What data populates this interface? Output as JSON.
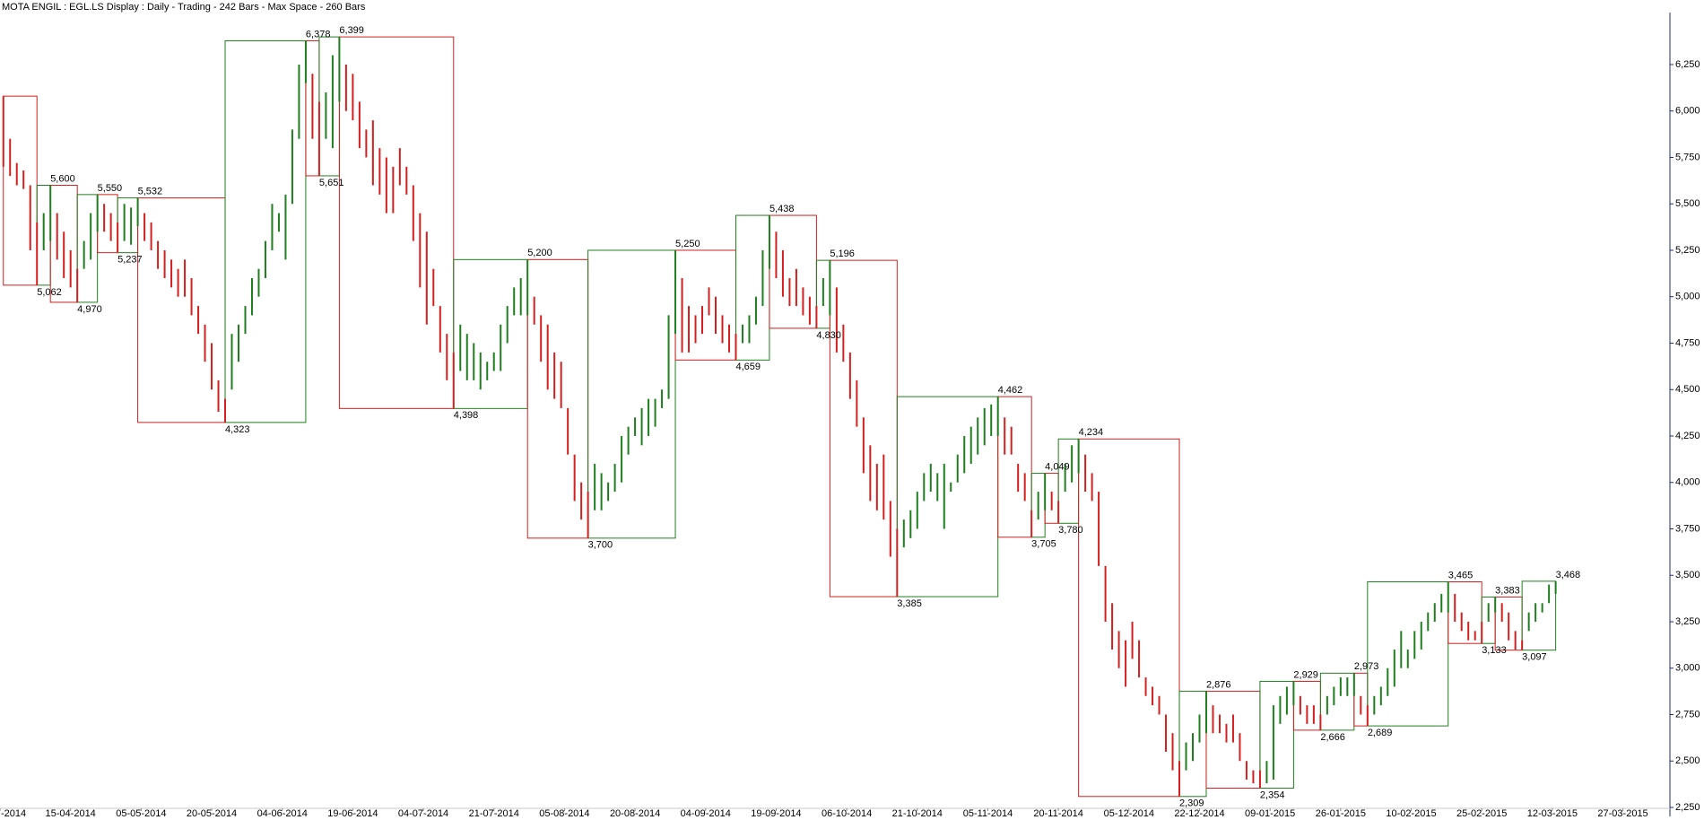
{
  "chart_data": {
    "type": "ohlc",
    "title": "MOTA ENGIL : EGL.LS Display :  Daily  - Trading - 242 Bars -  Max Space - 260 Bars",
    "xlim": [
      -0.5,
      248
    ],
    "ylim": [
      2250,
      6501
    ],
    "yticks": [
      {
        "value": 2250,
        "label": "2,250"
      },
      {
        "value": 2500,
        "label": "2,500"
      },
      {
        "value": 2750,
        "label": "2,750"
      },
      {
        "value": 3000,
        "label": "3,000"
      },
      {
        "value": 3250,
        "label": "3,250"
      },
      {
        "value": 3500,
        "label": "3,500"
      },
      {
        "value": 3750,
        "label": "3,750"
      },
      {
        "value": 4000,
        "label": "4,000"
      },
      {
        "value": 4250,
        "label": "4,250"
      },
      {
        "value": 4500,
        "label": "4,500"
      },
      {
        "value": 4750,
        "label": "4,750"
      },
      {
        "value": 5000,
        "label": "5,000"
      },
      {
        "value": 5250,
        "label": "5,250"
      },
      {
        "value": 5500,
        "label": "5,500"
      },
      {
        "value": 5750,
        "label": "5,750"
      },
      {
        "value": 6000,
        "label": "6,000"
      },
      {
        "value": 6250,
        "label": "6,250"
      }
    ],
    "xticks": [
      {
        "value": -0.5,
        "label": "-2014"
      },
      {
        "value": 10,
        "label": "15-04-2014"
      },
      {
        "value": 20.5,
        "label": "05-05-2014"
      },
      {
        "value": 31,
        "label": "20-05-2014"
      },
      {
        "value": 41.5,
        "label": "04-06-2014"
      },
      {
        "value": 52,
        "label": "19-06-2014"
      },
      {
        "value": 62.5,
        "label": "04-07-2014"
      },
      {
        "value": 73,
        "label": "21-07-2014"
      },
      {
        "value": 83.5,
        "label": "05-08-2014"
      },
      {
        "value": 94,
        "label": "20-08-2014"
      },
      {
        "value": 104.5,
        "label": "04-09-2014"
      },
      {
        "value": 115,
        "label": "19-09-2014"
      },
      {
        "value": 125.5,
        "label": "06-10-2014"
      },
      {
        "value": 136,
        "label": "21-10-2014"
      },
      {
        "value": 146.5,
        "label": "05-11-2014"
      },
      {
        "value": 157,
        "label": "20-11-2014"
      },
      {
        "value": 167.5,
        "label": "05-12-2014"
      },
      {
        "value": 178,
        "label": "22-12-2014"
      },
      {
        "value": 188.5,
        "label": "09-01-2015"
      },
      {
        "value": 199,
        "label": "26-01-2015"
      },
      {
        "value": 209.5,
        "label": "10-02-2015"
      },
      {
        "value": 220,
        "label": "25-02-2015"
      },
      {
        "value": 230.5,
        "label": "12-03-2015"
      },
      {
        "value": 241,
        "label": "27-03-2015"
      }
    ],
    "up_color": "#1f7f1f",
    "down_color": "#d41f1f",
    "high": [
      6080,
      5850,
      5720,
      5680,
      5600,
      5400,
      5450,
      5600,
      5450,
      5350,
      5250,
      5150,
      5300,
      5450,
      5550,
      5500,
      5450,
      5400,
      5500,
      5480,
      5532,
      5450,
      5400,
      5300,
      5250,
      5200,
      5150,
      5200,
      5100,
      4950,
      4850,
      4750,
      4550,
      4450,
      4800,
      4850,
      4950,
      5100,
      5150,
      5300,
      5500,
      5450,
      5550,
      5900,
      6250,
      6378,
      6200,
      6050,
      6100,
      6300,
      6399,
      6250,
      6200,
      6050,
      5900,
      5950,
      5800,
      5750,
      5700,
      5800,
      5700,
      5600,
      5450,
      5350,
      5150,
      4950,
      4800,
      4700,
      4850,
      4800,
      4750,
      4700,
      4650,
      4700,
      4850,
      4950,
      5050,
      5100,
      5200,
      5000,
      4900,
      4850,
      4700,
      4650,
      4400,
      4150,
      4000,
      3950,
      4100,
      4050,
      4000,
      4100,
      4250,
      4300,
      4350,
      4400,
      4450,
      4450,
      4500,
      4900,
      5250,
      5100,
      4950,
      4900,
      4950,
      5050,
      5000,
      4900,
      4850,
      4800,
      4850,
      4900,
      5000,
      5250,
      5438,
      5350,
      5250,
      5100,
      5150,
      5050,
      5000,
      4950,
      5100,
      5196,
      5050,
      4850,
      4700,
      4550,
      4350,
      4200,
      4100,
      4150,
      3900,
      3750,
      3800,
      3850,
      3950,
      4050,
      4100,
      4050,
      4100,
      4000,
      4150,
      4250,
      4300,
      4350,
      4400,
      4420,
      4462,
      4350,
      4300,
      4100,
      4050,
      3850,
      3950,
      4049,
      3950,
      3900,
      4100,
      4200,
      4234,
      4150,
      4050,
      3950,
      3550,
      3350,
      3200,
      3150,
      3250,
      3150,
      2950,
      2900,
      2850,
      2750,
      2650,
      2500,
      2600,
      2650,
      2750,
      2876,
      2800,
      2750,
      2700,
      2750,
      2650,
      2500,
      2450,
      2450,
      2500,
      2800,
      2850,
      2900,
      2929,
      2850,
      2800,
      2800,
      2750,
      2850,
      2900,
      2950,
      2950,
      2973,
      2850,
      2800,
      2850,
      2900,
      3000,
      3100,
      3200,
      3100,
      3200,
      3250,
      3300,
      3350,
      3400,
      3465,
      3400,
      3300,
      3250,
      3200,
      3250,
      3350,
      3383,
      3350,
      3300,
      3200,
      3150,
      3300,
      3350,
      3350,
      3450,
      3468
    ],
    "low": [
      5700,
      5650,
      5600,
      5580,
      5250,
      5062,
      5250,
      5300,
      5200,
      5100,
      5050,
      4970,
      5150,
      5200,
      5350,
      5350,
      5300,
      5237,
      5300,
      5280,
      5380,
      5300,
      5250,
      5150,
      5100,
      5050,
      5000,
      5000,
      4900,
      4800,
      4650,
      4500,
      4380,
      4323,
      4500,
      4650,
      4800,
      4900,
      5000,
      5100,
      5250,
      5350,
      5200,
      5500,
      5850,
      6150,
      5850,
      5651,
      5850,
      5800,
      6050,
      6000,
      5950,
      5800,
      5750,
      5600,
      5550,
      5450,
      5450,
      5600,
      5550,
      5300,
      5050,
      4850,
      4950,
      4700,
      4550,
      4398,
      4600,
      4550,
      4550,
      4500,
      4550,
      4600,
      4600,
      4750,
      4900,
      4900,
      4900,
      4850,
      4650,
      4500,
      4450,
      4400,
      4150,
      3900,
      3800,
      3700,
      3850,
      3850,
      3900,
      3950,
      4000,
      4150,
      4250,
      4200,
      4250,
      4300,
      4400,
      4450,
      4800,
      4700,
      4700,
      4750,
      4800,
      4900,
      4800,
      4750,
      4700,
      4659,
      4750,
      4750,
      4850,
      4950,
      5150,
      5100,
      5000,
      4950,
      4950,
      4900,
      4850,
      4830,
      4950,
      4900,
      4700,
      4650,
      4450,
      4300,
      4050,
      3900,
      3850,
      3800,
      3600,
      3385,
      3650,
      3700,
      3750,
      3900,
      3950,
      3900,
      3750,
      3950,
      4000,
      4050,
      4100,
      4150,
      4200,
      4250,
      4250,
      4150,
      4150,
      3950,
      3900,
      3705,
      3800,
      3850,
      3850,
      3780,
      3950,
      4000,
      4050,
      3950,
      3900,
      3550,
      3250,
      3100,
      3000,
      2900,
      3050,
      2950,
      2850,
      2800,
      2750,
      2550,
      2450,
      2309,
      2450,
      2500,
      2600,
      2650,
      2650,
      2650,
      2600,
      2600,
      2500,
      2400,
      2380,
      2354,
      2380,
      2400,
      2700,
      2750,
      2800,
      2750,
      2700,
      2700,
      2666,
      2750,
      2800,
      2850,
      2850,
      2850,
      2750,
      2689,
      2750,
      2800,
      2850,
      2900,
      3000,
      3000,
      3050,
      3100,
      3200,
      3250,
      3300,
      3300,
      3250,
      3200,
      3150,
      3150,
      3133,
      3250,
      3300,
      3250,
      3150,
      3100,
      3097,
      3200,
      3250,
      3300,
      3350,
      3400
    ],
    "pivots": {
      "x": [
        0,
        5,
        7,
        11,
        14,
        17,
        20,
        33,
        45,
        47,
        50,
        67,
        78,
        87,
        100,
        109,
        114,
        121,
        123,
        133,
        148,
        153,
        155,
        157,
        160,
        175,
        179,
        187,
        192,
        196,
        201,
        203,
        215,
        220,
        222,
        226,
        231
      ],
      "values": [
        6080,
        5062,
        5600,
        4970,
        5550,
        5237,
        5532,
        4323,
        6378,
        5651,
        6399,
        4398,
        5200,
        3700,
        5250,
        4659,
        5438,
        4830,
        5196,
        3385,
        4462,
        3705,
        4049,
        3780,
        4234,
        2309,
        2876,
        2354,
        2929,
        2666,
        2973,
        2689,
        3465,
        3133,
        3383,
        3097,
        3468
      ],
      "labels": [
        null,
        "5,062",
        "5,600",
        "4,970",
        "5,550",
        "5,237",
        "5,532",
        "4,323",
        "6,378",
        "5,651",
        "6,399",
        "4,398",
        "5,200",
        "3,700",
        "5,250",
        "4,659",
        "5,438",
        "4,830",
        "5,196",
        "3,385",
        "4,462",
        "3,705",
        "4,049",
        "3,780",
        "4,234",
        "2,309",
        "2,876",
        "2,354",
        "2,929",
        "2,666",
        "2,973",
        "2,689",
        "3,465",
        "3,133",
        "3,383",
        "3,097",
        "3,468"
      ]
    }
  }
}
